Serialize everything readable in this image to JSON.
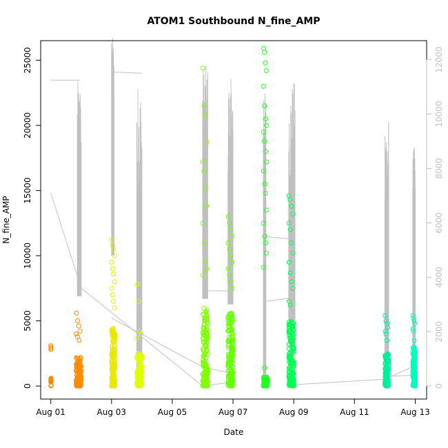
{
  "chart_data": {
    "type": "scatter",
    "title": "ATOM1 Southbound N_fine_AMP",
    "xlabel": "Date",
    "ylabel": "N_fine_AMP",
    "xlim": [
      "2013-07-31T16:00",
      "2013-08-13T09:00"
    ],
    "ylim": [
      -1000,
      26500
    ],
    "x_ticks": [
      {
        "date": "2013-08-01",
        "label": "Aug 01"
      },
      {
        "date": "2013-08-03",
        "label": "Aug 03"
      },
      {
        "date": "2013-08-05",
        "label": "Aug 05"
      },
      {
        "date": "2013-08-07",
        "label": "Aug 07"
      },
      {
        "date": "2013-08-09",
        "label": "Aug 09"
      },
      {
        "date": "2013-08-11",
        "label": "Aug 11"
      },
      {
        "date": "2013-08-13",
        "label": "Aug 13"
      }
    ],
    "y_ticks": [
      0,
      5000,
      10000,
      15000,
      20000,
      25000
    ],
    "y2_ticks": [
      0,
      2000,
      4000,
      6000,
      8000,
      10000,
      12000
    ],
    "y2lim": [
      -480,
      12700
    ],
    "grid": false,
    "marker": "open-circle",
    "clusters": [
      {
        "start": "2013-08-01T00:00",
        "end": "2013-08-01T00:20",
        "color": "#F08C00",
        "n": 14,
        "base_max": 600,
        "peaks": [
          3100,
          2800,
          2900,
          600,
          500,
          3000
        ]
      },
      {
        "start": "2013-08-01T20:00",
        "end": "2013-08-02T00:00",
        "color": "#FF8C00",
        "n": 150,
        "base_max": 2200,
        "peaks": [
          5600,
          5000,
          4600,
          4200,
          4000,
          3800,
          3500
        ]
      },
      {
        "start": "2013-08-03T00:00",
        "end": "2013-08-03T03:00",
        "color": "#E8E800",
        "n": 150,
        "base_max": 4500,
        "peaks": [
          11200,
          10800,
          10500,
          10000,
          9500,
          9000,
          8600,
          8000,
          7500,
          7000,
          6500,
          6000
        ]
      },
      {
        "start": "2013-08-03T20:00",
        "end": "2013-08-04T00:00",
        "color": "#DFFF00",
        "n": 150,
        "base_max": 2500,
        "peaks": [
          7800,
          6500,
          4200,
          4000,
          3700
        ]
      },
      {
        "start": "2013-08-06T00:00",
        "end": "2013-08-06T04:00",
        "color": "#7FFF00",
        "n": 170,
        "base_max": 6000,
        "peaks": [
          24400,
          21500,
          20800,
          18700,
          17200,
          16500,
          15200,
          13800,
          12500,
          11000,
          9600,
          9000,
          8500
        ]
      },
      {
        "start": "2013-08-06T20:00",
        "end": "2013-08-07T00:00",
        "color": "#66FF00",
        "n": 170,
        "base_max": 5800,
        "peaks": [
          13000,
          12500,
          12000,
          11500,
          11000,
          10500,
          10000,
          9500,
          9000,
          8500,
          8000,
          7500
        ]
      },
      {
        "start": "2013-08-08T00:00",
        "end": "2013-08-08T03:00",
        "color": "#22FF22",
        "n": 120,
        "base_max": 700,
        "peaks": [
          25900,
          25600,
          24800,
          24200,
          23000,
          21500,
          20500,
          20000,
          19500,
          18800,
          18000,
          17200,
          16500,
          15500,
          14800,
          13500,
          12500,
          11500,
          11000,
          10200,
          9100,
          1400
        ]
      },
      {
        "start": "2013-08-08T20:00",
        "end": "2013-08-09T00:00",
        "color": "#00FF55",
        "n": 170,
        "base_max": 5000,
        "peaks": [
          14600,
          14300,
          13800,
          13200,
          12500,
          12000,
          11000,
          10200,
          9500,
          8700,
          8000,
          7500,
          6500,
          6200
        ]
      },
      {
        "start": "2013-08-12T00:00",
        "end": "2013-08-12T03:00",
        "color": "#00EE99",
        "n": 120,
        "base_max": 2500,
        "peaks": [
          5400,
          5000,
          4800,
          4500,
          4200,
          4000,
          3500
        ]
      },
      {
        "start": "2013-08-12T22:00",
        "end": "2013-08-13T00:00",
        "color": "#00FFBB",
        "n": 130,
        "base_max": 3000,
        "peaks": [
          5400,
          5200,
          5000,
          4800,
          4400,
          4200,
          3500
        ]
      }
    ],
    "secondary_series": {
      "color": "#c0c0c0",
      "spikes": [
        {
          "start": "2013-08-01T21:00",
          "end": "2013-08-02T00:00",
          "low": 3300,
          "high": 11200
        },
        {
          "start": "2013-08-03T00:00",
          "end": "2013-08-03T02:00",
          "low": 4800,
          "high": 12900
        },
        {
          "start": "2013-08-03T20:00",
          "end": "2013-08-04T00:00",
          "low": 0,
          "high": 11200
        },
        {
          "start": "2013-08-06T00:00",
          "end": "2013-08-06T04:00",
          "low": 3200,
          "high": 11800
        },
        {
          "start": "2013-08-06T20:00",
          "end": "2013-08-07T00:00",
          "low": 3000,
          "high": 11300
        },
        {
          "start": "2013-08-08T00:00",
          "end": "2013-08-08T02:00",
          "low": 0,
          "high": 10900
        },
        {
          "start": "2013-08-08T20:00",
          "end": "2013-08-09T01:00",
          "low": 2400,
          "high": 11200
        },
        {
          "start": "2013-08-12T00:00",
          "end": "2013-08-12T03:00",
          "low": 0,
          "high": 10000
        },
        {
          "start": "2013-08-12T22:00",
          "end": "2013-08-13T00:00",
          "low": 0,
          "high": 8800
        }
      ],
      "connectors": [
        [
          [
            "2013-08-01T00:00",
            11250
          ],
          [
            "2013-08-01T23:00",
            11250
          ]
        ],
        [
          [
            "2013-08-01T00:00",
            7100
          ],
          [
            "2013-08-02T00:00",
            3600
          ],
          [
            "2013-08-06T00:00",
            0
          ],
          [
            "2013-08-07T00:00",
            150
          ]
        ],
        [
          [
            "2013-08-03T00:00",
            11550
          ],
          [
            "2013-08-04T00:00",
            11500
          ]
        ],
        [
          [
            "2013-08-03T00:00",
            2500
          ],
          [
            "2013-08-06T00:00",
            700
          ],
          [
            "2013-08-07T00:00",
            450
          ]
        ],
        [
          [
            "2013-08-06T00:00",
            3500
          ],
          [
            "2013-08-07T00:00",
            3500
          ]
        ],
        [
          [
            "2013-08-08T00:00",
            5500
          ],
          [
            "2013-08-09T00:00",
            5400
          ]
        ],
        [
          [
            "2013-08-08T00:00",
            3100
          ],
          [
            "2013-08-09T00:00",
            3250
          ]
        ],
        [
          [
            "2013-08-09T00:00",
            50
          ],
          [
            "2013-08-12T00:00",
            250
          ],
          [
            "2013-08-13T00:00",
            750
          ]
        ],
        [
          [
            "2013-08-12T00:00",
            350
          ],
          [
            "2013-08-13T00:00",
            400
          ]
        ]
      ]
    }
  }
}
